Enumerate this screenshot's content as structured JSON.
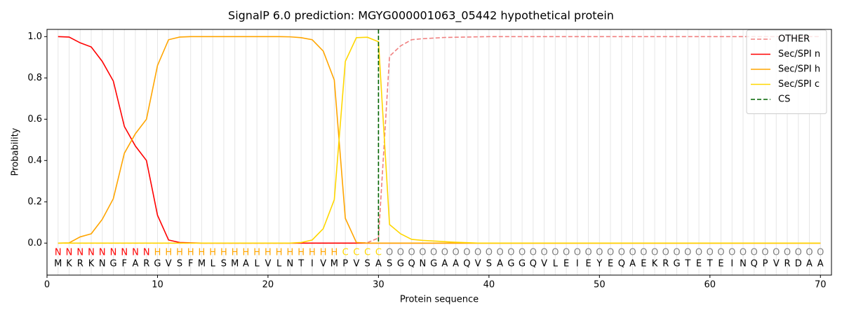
{
  "chart_data": {
    "type": "line",
    "title": "SignalP 6.0 prediction: MGYG000001063_05442 hypothetical protein",
    "x_label": "Protein sequence",
    "y_label": "Probability",
    "x": [
      1,
      2,
      3,
      4,
      5,
      6,
      7,
      8,
      9,
      10,
      11,
      12,
      13,
      14,
      15,
      16,
      17,
      18,
      19,
      20,
      21,
      22,
      23,
      24,
      25,
      26,
      27,
      28,
      29,
      30,
      31,
      32,
      33,
      34,
      35,
      36,
      37,
      38,
      39,
      40,
      41,
      42,
      43,
      44,
      45,
      46,
      47,
      48,
      49,
      50,
      51,
      52,
      53,
      54,
      55,
      56,
      57,
      58,
      59,
      60,
      61,
      62,
      63,
      64,
      65,
      66,
      67,
      68,
      69,
      70
    ],
    "sequence": [
      "M",
      "K",
      "R",
      "K",
      "N",
      "G",
      "F",
      "A",
      "R",
      "G",
      "V",
      "S",
      "F",
      "M",
      "L",
      "S",
      "M",
      "A",
      "L",
      "V",
      "L",
      "N",
      "T",
      "I",
      "V",
      "M",
      "P",
      "V",
      "S",
      "A",
      "S",
      "G",
      "Q",
      "N",
      "G",
      "A",
      "A",
      "Q",
      "V",
      "S",
      "A",
      "G",
      "G",
      "Q",
      "V",
      "L",
      "E",
      "I",
      "E",
      "Y",
      "E",
      "Q",
      "A",
      "E",
      "K",
      "R",
      "G",
      "T",
      "E",
      "T",
      "E",
      "I",
      "N",
      "Q",
      "P",
      "V",
      "R",
      "D",
      "A",
      "A"
    ],
    "labels": [
      "N",
      "N",
      "N",
      "N",
      "N",
      "N",
      "N",
      "N",
      "N",
      "H",
      "H",
      "H",
      "H",
      "H",
      "H",
      "H",
      "H",
      "H",
      "H",
      "H",
      "H",
      "H",
      "H",
      "H",
      "H",
      "H",
      "C",
      "C",
      "C",
      "C",
      "O",
      "O",
      "O",
      "O",
      "O",
      "O",
      "O",
      "O",
      "O",
      "O",
      "O",
      "O",
      "O",
      "O",
      "O",
      "O",
      "O",
      "O",
      "O",
      "O",
      "O",
      "O",
      "O",
      "O",
      "O",
      "O",
      "O",
      "O",
      "O",
      "O",
      "O",
      "O",
      "O",
      "O",
      "O",
      "O",
      "O",
      "O",
      "O",
      "O"
    ],
    "label_colors": {
      "N": "#ff0000",
      "H": "#ffa500",
      "C": "#ffd700",
      "O": "#808080"
    },
    "series": [
      {
        "name": "OTHER",
        "color": "#f08080",
        "dashed": true,
        "values": [
          0,
          0,
          0,
          0,
          0,
          0,
          0,
          0,
          0,
          0,
          0,
          0,
          0,
          0,
          0,
          0,
          0,
          0,
          0,
          0,
          0,
          0,
          0,
          0,
          0,
          0,
          0,
          0,
          0.002,
          0.025,
          0.905,
          0.955,
          0.985,
          0.99,
          0.993,
          0.996,
          0.997,
          0.998,
          0.999,
          1,
          1,
          1,
          1,
          1,
          1,
          1,
          1,
          1,
          1,
          1,
          1,
          1,
          1,
          1,
          1,
          1,
          1,
          1,
          1,
          1,
          1,
          1,
          1,
          1,
          1,
          1,
          1,
          1,
          1,
          1
        ]
      },
      {
        "name": "Sec/SPI n",
        "color": "#ff0000",
        "dashed": false,
        "values": [
          1,
          0.998,
          0.97,
          0.95,
          0.88,
          0.785,
          0.565,
          0.47,
          0.4,
          0.135,
          0.015,
          0.003,
          0.001,
          0,
          0,
          0,
          0,
          0,
          0,
          0,
          0,
          0,
          0,
          0,
          0,
          0,
          0,
          0,
          0,
          0,
          0,
          0,
          0,
          0,
          0,
          0,
          0,
          0,
          0,
          0,
          0,
          0,
          0,
          0,
          0,
          0,
          0,
          0,
          0,
          0,
          0,
          0,
          0,
          0,
          0,
          0,
          0,
          0,
          0,
          0,
          0,
          0,
          0,
          0,
          0,
          0,
          0,
          0,
          0,
          0
        ]
      },
      {
        "name": "Sec/SPI h",
        "color": "#ffa500",
        "dashed": false,
        "values": [
          0,
          0.001,
          0.03,
          0.045,
          0.115,
          0.215,
          0.435,
          0.53,
          0.6,
          0.86,
          0.985,
          0.998,
          1,
          1,
          1,
          1,
          1,
          1,
          1,
          1,
          1,
          0.999,
          0.995,
          0.985,
          0.93,
          0.79,
          0.12,
          0.003,
          0,
          0,
          0,
          0,
          0,
          0,
          0,
          0,
          0,
          0,
          0,
          0,
          0,
          0,
          0,
          0,
          0,
          0,
          0,
          0,
          0,
          0,
          0,
          0,
          0,
          0,
          0,
          0,
          0,
          0,
          0,
          0,
          0,
          0,
          0,
          0,
          0,
          0,
          0,
          0,
          0,
          0
        ]
      },
      {
        "name": "Sec/SPI c",
        "color": "#ffd700",
        "dashed": false,
        "values": [
          0,
          0,
          0,
          0,
          0,
          0,
          0,
          0,
          0,
          0,
          0,
          0,
          0,
          0,
          0,
          0,
          0,
          0,
          0,
          0,
          0,
          0,
          0.003,
          0.015,
          0.07,
          0.21,
          0.88,
          0.995,
          0.997,
          0.975,
          0.09,
          0.045,
          0.018,
          0.013,
          0.01,
          0.007,
          0.004,
          0.002,
          0,
          0,
          0,
          0,
          0,
          0,
          0,
          0,
          0,
          0,
          0,
          0,
          0,
          0,
          0,
          0,
          0,
          0,
          0,
          0,
          0,
          0,
          0,
          0,
          0,
          0,
          0,
          0,
          0,
          0,
          0,
          0
        ]
      }
    ],
    "cs": {
      "name": "CS",
      "color": "#006400",
      "x": 30
    },
    "xlim": [
      0,
      71
    ],
    "ylim": [
      -0.155,
      1.035
    ],
    "xticks": [
      0,
      10,
      20,
      30,
      40,
      50,
      60,
      70
    ],
    "yticks": [
      {
        "value": 0,
        "label": "0.0"
      },
      {
        "value": 0.2,
        "label": "0.2"
      },
      {
        "value": 0.4,
        "label": "0.4"
      },
      {
        "value": 0.6,
        "label": "0.6"
      },
      {
        "value": 0.8,
        "label": "0.8"
      },
      {
        "value": 1,
        "label": "1.0"
      }
    ],
    "grid": true,
    "legend": "upper right"
  }
}
